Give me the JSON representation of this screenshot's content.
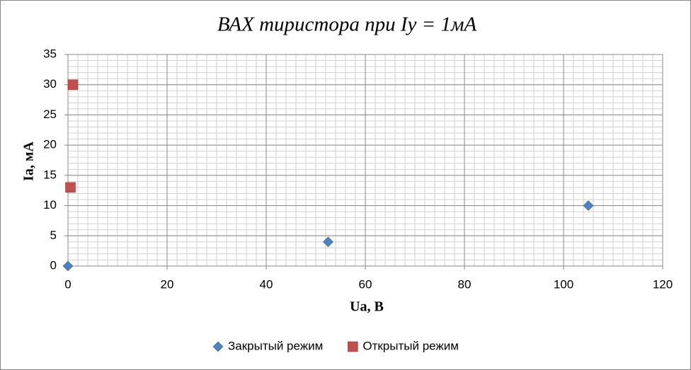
{
  "chart_data": {
    "type": "scatter",
    "title": "ВАХ тиристора  при Iy = 1мА",
    "x_label": "Ua, B",
    "y_label": "Ia, мА",
    "series": [
      {
        "name": "Закрытый режим",
        "color": "#4f81bd",
        "marker": "diamond",
        "x": [
          0,
          52.5,
          105
        ],
        "values": [
          0,
          4,
          10
        ]
      },
      {
        "name": "Открытый режим",
        "color": "#c0504d",
        "marker": "square",
        "x": [
          0.5,
          1
        ],
        "values": [
          13,
          30
        ]
      }
    ],
    "xlim": [
      0,
      120
    ],
    "xticks": [
      0,
      20,
      40,
      60,
      80,
      100,
      120
    ],
    "ylim": [
      0,
      35
    ],
    "yticks": [
      0,
      5,
      10,
      15,
      20,
      25,
      30,
      35
    ],
    "grid": true,
    "x_minor_step": 2,
    "y_minor_step": 1,
    "legend": "bottom"
  }
}
